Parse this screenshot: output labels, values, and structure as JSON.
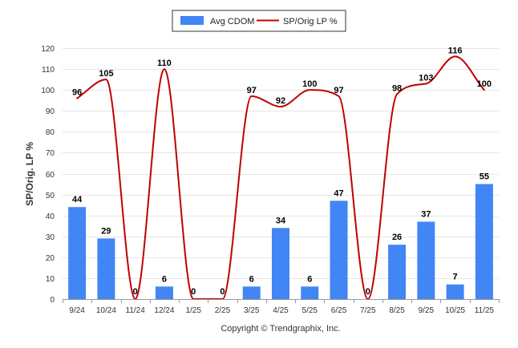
{
  "chart_data": {
    "type": "bar+line",
    "title": "",
    "xlabel": "",
    "ylabel": "SP/Orig. LP %",
    "ylim": [
      0,
      120
    ],
    "yticks": [
      0,
      10,
      20,
      30,
      40,
      50,
      60,
      70,
      80,
      90,
      100,
      110,
      120
    ],
    "grid": true,
    "legend_position": "top-center",
    "categories": [
      "9/24",
      "10/24",
      "11/24",
      "12/24",
      "1/25",
      "2/25",
      "3/25",
      "4/25",
      "5/25",
      "6/25",
      "7/25",
      "8/25",
      "9/25",
      "10/25",
      "11/25"
    ],
    "series": [
      {
        "name": "Avg CDOM",
        "kind": "bar",
        "color": "#4285f4",
        "values": [
          44,
          29,
          0,
          6,
          0,
          0,
          6,
          34,
          6,
          47,
          0,
          26,
          37,
          7,
          55
        ]
      },
      {
        "name": "SP/Orig LP %",
        "kind": "line",
        "color": "#c00000",
        "values": [
          96,
          105,
          0,
          110,
          0,
          0,
          97,
          92,
          100,
          97,
          0,
          98,
          103,
          116,
          100
        ]
      }
    ],
    "credit": "Copyright © Trendgraphix, Inc."
  }
}
